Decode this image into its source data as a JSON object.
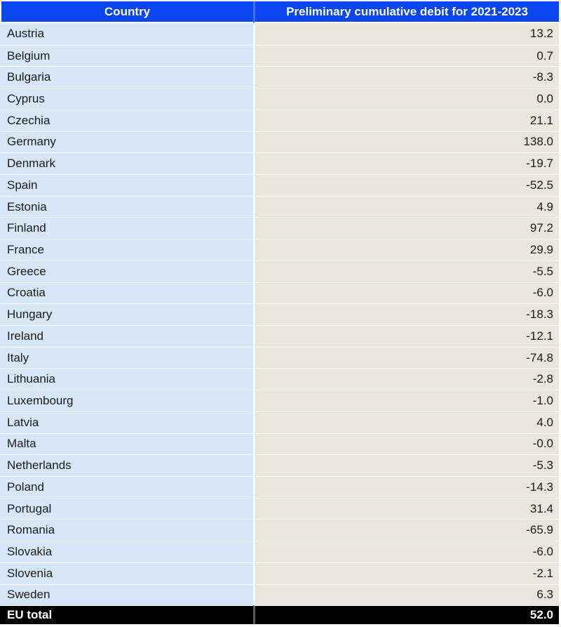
{
  "table": {
    "header": {
      "country": "Country",
      "value": "Preliminary cumulative debit for 2021-2023"
    },
    "rows": [
      {
        "country": "Austria",
        "value": "13.2"
      },
      {
        "country": "Belgium",
        "value": "0.7"
      },
      {
        "country": "Bulgaria",
        "value": "-8.3"
      },
      {
        "country": "Cyprus",
        "value": "0.0"
      },
      {
        "country": "Czechia",
        "value": "21.1"
      },
      {
        "country": "Germany",
        "value": "138.0"
      },
      {
        "country": "Denmark",
        "value": "-19.7"
      },
      {
        "country": "Spain",
        "value": "-52.5"
      },
      {
        "country": "Estonia",
        "value": "4.9"
      },
      {
        "country": "Finland",
        "value": "97.2"
      },
      {
        "country": "France",
        "value": "29.9"
      },
      {
        "country": "Greece",
        "value": "-5.5"
      },
      {
        "country": "Croatia",
        "value": "-6.0"
      },
      {
        "country": "Hungary",
        "value": "-18.3"
      },
      {
        "country": "Ireland",
        "value": "-12.1"
      },
      {
        "country": "Italy",
        "value": "-74.8"
      },
      {
        "country": "Lithuania",
        "value": "-2.8"
      },
      {
        "country": "Luxembourg",
        "value": "-1.0"
      },
      {
        "country": "Latvia",
        "value": "4.0"
      },
      {
        "country": "Malta",
        "value": "-0.0"
      },
      {
        "country": "Netherlands",
        "value": "-5.3"
      },
      {
        "country": "Poland",
        "value": "-14.3"
      },
      {
        "country": "Portugal",
        "value": "31.4"
      },
      {
        "country": "Romania",
        "value": "-65.9"
      },
      {
        "country": "Slovakia",
        "value": "-6.0"
      },
      {
        "country": "Slovenia",
        "value": "-2.1"
      },
      {
        "country": "Sweden",
        "value": "6.3"
      }
    ],
    "total": {
      "country": "EU total",
      "value": "52.0"
    }
  },
  "colors": {
    "header_bg": "#0a46f0",
    "header_gap": "#4a6ef5",
    "country_bg": "#d7e7f8",
    "value_bg": "#e9e6df",
    "total_bg": "#000000",
    "total_gap": "#5a5a5a",
    "text_color": "#1a1a1a",
    "header_text": "#ffffff",
    "total_text": "#ffffff"
  },
  "chart_data": {
    "type": "table",
    "title": "Preliminary cumulative debit for 2021-2023",
    "columns": [
      "Country",
      "Preliminary cumulative debit for 2021-2023"
    ],
    "categories": [
      "Austria",
      "Belgium",
      "Bulgaria",
      "Cyprus",
      "Czechia",
      "Germany",
      "Denmark",
      "Spain",
      "Estonia",
      "Finland",
      "France",
      "Greece",
      "Croatia",
      "Hungary",
      "Ireland",
      "Italy",
      "Lithuania",
      "Luxembourg",
      "Latvia",
      "Malta",
      "Netherlands",
      "Poland",
      "Portugal",
      "Romania",
      "Slovakia",
      "Slovenia",
      "Sweden"
    ],
    "values": [
      13.2,
      0.7,
      -8.3,
      0.0,
      21.1,
      138.0,
      -19.7,
      -52.5,
      4.9,
      97.2,
      29.9,
      -5.5,
      -6.0,
      -18.3,
      -12.1,
      -74.8,
      -2.8,
      -1.0,
      4.0,
      -0.0,
      -5.3,
      -14.3,
      31.4,
      -65.9,
      -6.0,
      -2.1,
      6.3
    ],
    "total_label": "EU total",
    "total_value": 52.0
  }
}
